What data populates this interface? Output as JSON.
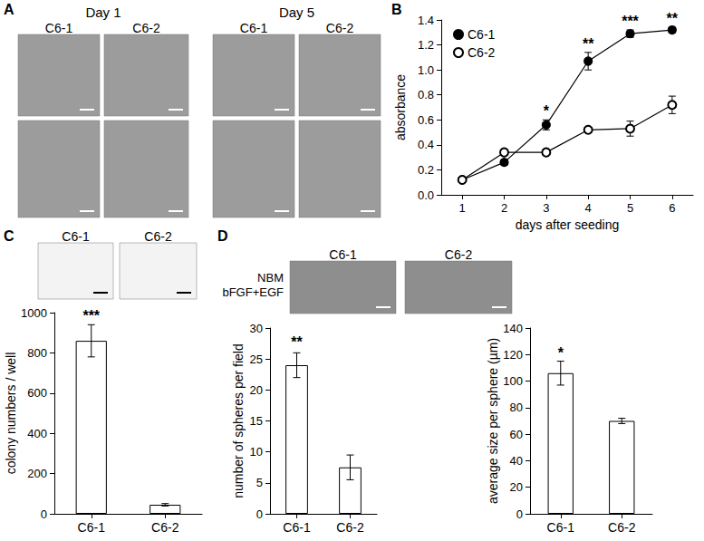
{
  "images": [
    {
      "panel": "A",
      "groups": [
        {
          "title": "Day 1",
          "columns": [
            "C6-1",
            "C6-2"
          ]
        },
        {
          "title": "Day 5",
          "columns": [
            "C6-1",
            "C6-2"
          ]
        }
      ]
    },
    {
      "panel": "C",
      "columns": [
        "C6-1",
        "C6-2"
      ]
    },
    {
      "panel": "D",
      "row_label": [
        "NBM",
        "bFGF+EGF"
      ],
      "columns": [
        "C6-1",
        "C6-2"
      ]
    }
  ],
  "chart_data": [
    {
      "panel": "B",
      "type": "line",
      "x": [
        1,
        2,
        3,
        4,
        5,
        6
      ],
      "xlim": [
        0.5,
        6.5
      ],
      "xticks": [
        1,
        2,
        3,
        4,
        5,
        6
      ],
      "ylim": [
        0,
        1.4
      ],
      "yticks": [
        {
          "value": 0,
          "label": "0.0"
        },
        0.2,
        0.4,
        0.6,
        0.8,
        {
          "value": 1,
          "label": "1.0"
        },
        1.2,
        1.4
      ],
      "x_label": "days after seeding",
      "y_label": "absorbance",
      "legend": "upper left",
      "grid": false,
      "series": [
        {
          "name": "C6-1",
          "color": "#000000",
          "marker": "filled_circle",
          "values": [
            0.12,
            0.26,
            0.56,
            1.07,
            1.29,
            1.32
          ],
          "errors": [
            0.02,
            0.02,
            0.04,
            0.07,
            0.03,
            0.02
          ]
        },
        {
          "name": "C6-2",
          "color": "#000000",
          "marker": "open_circle",
          "values": [
            0.12,
            0.34,
            0.34,
            0.52,
            0.53,
            0.72
          ],
          "errors": [
            0.01,
            0.02,
            0.01,
            0.02,
            0.06,
            0.07
          ]
        }
      ],
      "annotations": [
        {
          "x": 3,
          "y": 0.61,
          "text": "*"
        },
        {
          "x": 4,
          "y": 1.15,
          "text": "**"
        },
        {
          "x": 5,
          "y": 1.33,
          "text": "***"
        },
        {
          "x": 6,
          "y": 1.35,
          "text": "**"
        }
      ]
    },
    {
      "type": "bar",
      "categories": [
        "C6-1",
        "C6-2"
      ],
      "values": [
        860,
        45
      ],
      "errors": [
        80,
        6
      ],
      "color": "#ffffff",
      "ylim": [
        0,
        1000
      ],
      "yticks": [
        0,
        200,
        400,
        600,
        800,
        1000
      ],
      "y_label": "colony numbers / well",
      "grid": false,
      "annotations": [
        {
          "x": "C6-1",
          "y": 950,
          "text": "***"
        }
      ]
    },
    {
      "type": "bar",
      "categories": [
        "C6-1",
        "C6-2"
      ],
      "values": [
        24,
        7.5
      ],
      "errors": [
        2,
        2
      ],
      "color": "#ffffff",
      "ylim": [
        0,
        30
      ],
      "yticks": [
        0,
        5,
        10,
        15,
        20,
        25,
        30
      ],
      "y_label": "number of spheres per field",
      "grid": false,
      "annotations": [
        {
          "x": "C6-1",
          "y": 26.5,
          "text": "**"
        }
      ]
    },
    {
      "type": "bar",
      "categories": [
        "C6-1",
        "C6-2"
      ],
      "values": [
        106,
        70
      ],
      "errors": [
        9,
        2
      ],
      "color": "#ffffff",
      "ylim": [
        0,
        140
      ],
      "yticks": [
        0,
        20,
        40,
        60,
        80,
        100,
        120,
        140
      ],
      "y_label": "average size per sphere (µm)",
      "grid": false,
      "annotations": [
        {
          "x": "C6-1",
          "y": 116,
          "text": "*"
        }
      ]
    }
  ]
}
